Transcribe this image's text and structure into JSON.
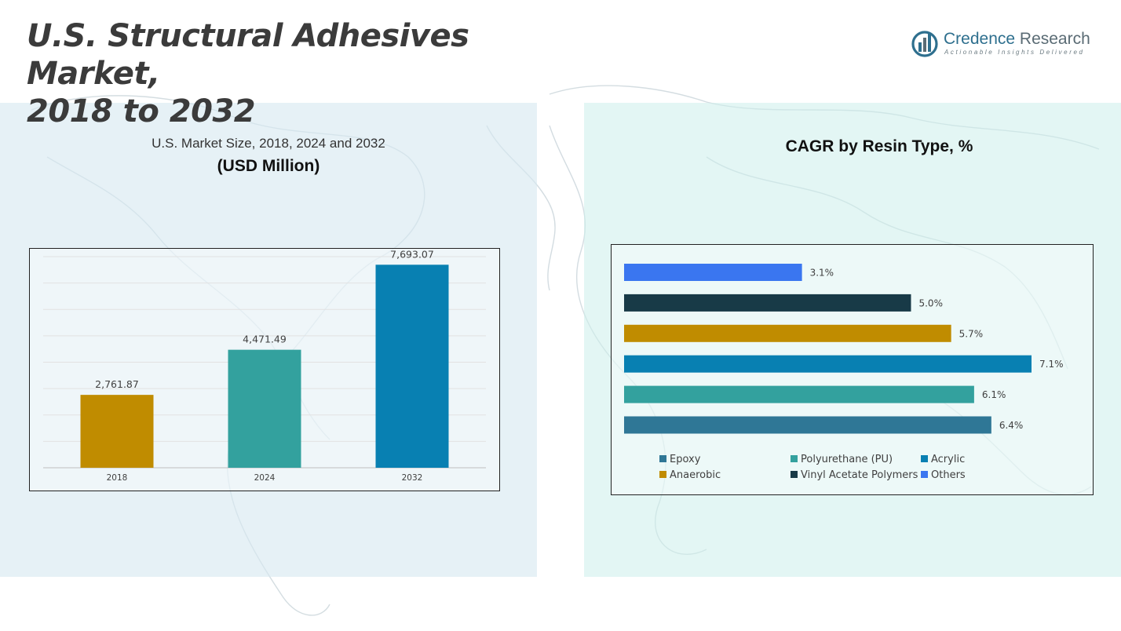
{
  "page": {
    "title_line1": "U.S. Structural Adhesives Market,",
    "title_line2": "2018 to 2032"
  },
  "logo": {
    "name_part1": "Credence",
    "name_part2": " Research",
    "tagline": "Actionable Insights Delivered",
    "color": "#2e6f8e"
  },
  "chart_data": [
    {
      "type": "bar",
      "title": "U.S. Market Size, 2018, 2024 and 2032",
      "subtitle": "(USD Million)",
      "categories": [
        "2018",
        "2024",
        "2032"
      ],
      "values": [
        2761.87,
        4471.49,
        7693.07
      ],
      "value_labels": [
        "2,761.87",
        "4,471.49",
        "7,693.07"
      ],
      "colors": [
        "#c08c00",
        "#33a19e",
        "#0880b2"
      ],
      "ylim": [
        0,
        8000
      ],
      "grid": true,
      "legend": "none"
    },
    {
      "type": "bar",
      "orientation": "horizontal",
      "title": "CAGR by Resin Type, %",
      "categories": [
        "Others",
        "Vinyl Acetate Polymers",
        "Anaerobic",
        "Acrylic",
        "Polyurethane (PU)",
        "Epoxy"
      ],
      "values": [
        3.1,
        5.0,
        5.7,
        7.1,
        6.1,
        6.4
      ],
      "value_labels": [
        "3.1%",
        "5.0%",
        "5.7%",
        "7.1%",
        "6.1%",
        "6.4%"
      ],
      "colors": [
        "#3a76f0",
        "#183a47",
        "#c08c00",
        "#0880b2",
        "#33a19e",
        "#2f7796"
      ],
      "xlim": [
        0,
        7.1
      ],
      "legend_position": "bottom",
      "legend": [
        {
          "label": "Epoxy",
          "color": "#2f7796"
        },
        {
          "label": "Polyurethane (PU)",
          "color": "#33a19e"
        },
        {
          "label": "Acrylic",
          "color": "#0880b2"
        },
        {
          "label": "Anaerobic",
          "color": "#c08c00"
        },
        {
          "label": "Vinyl Acetate Polymers",
          "color": "#183a47"
        },
        {
          "label": "Others",
          "color": "#3a76f0"
        }
      ]
    }
  ]
}
